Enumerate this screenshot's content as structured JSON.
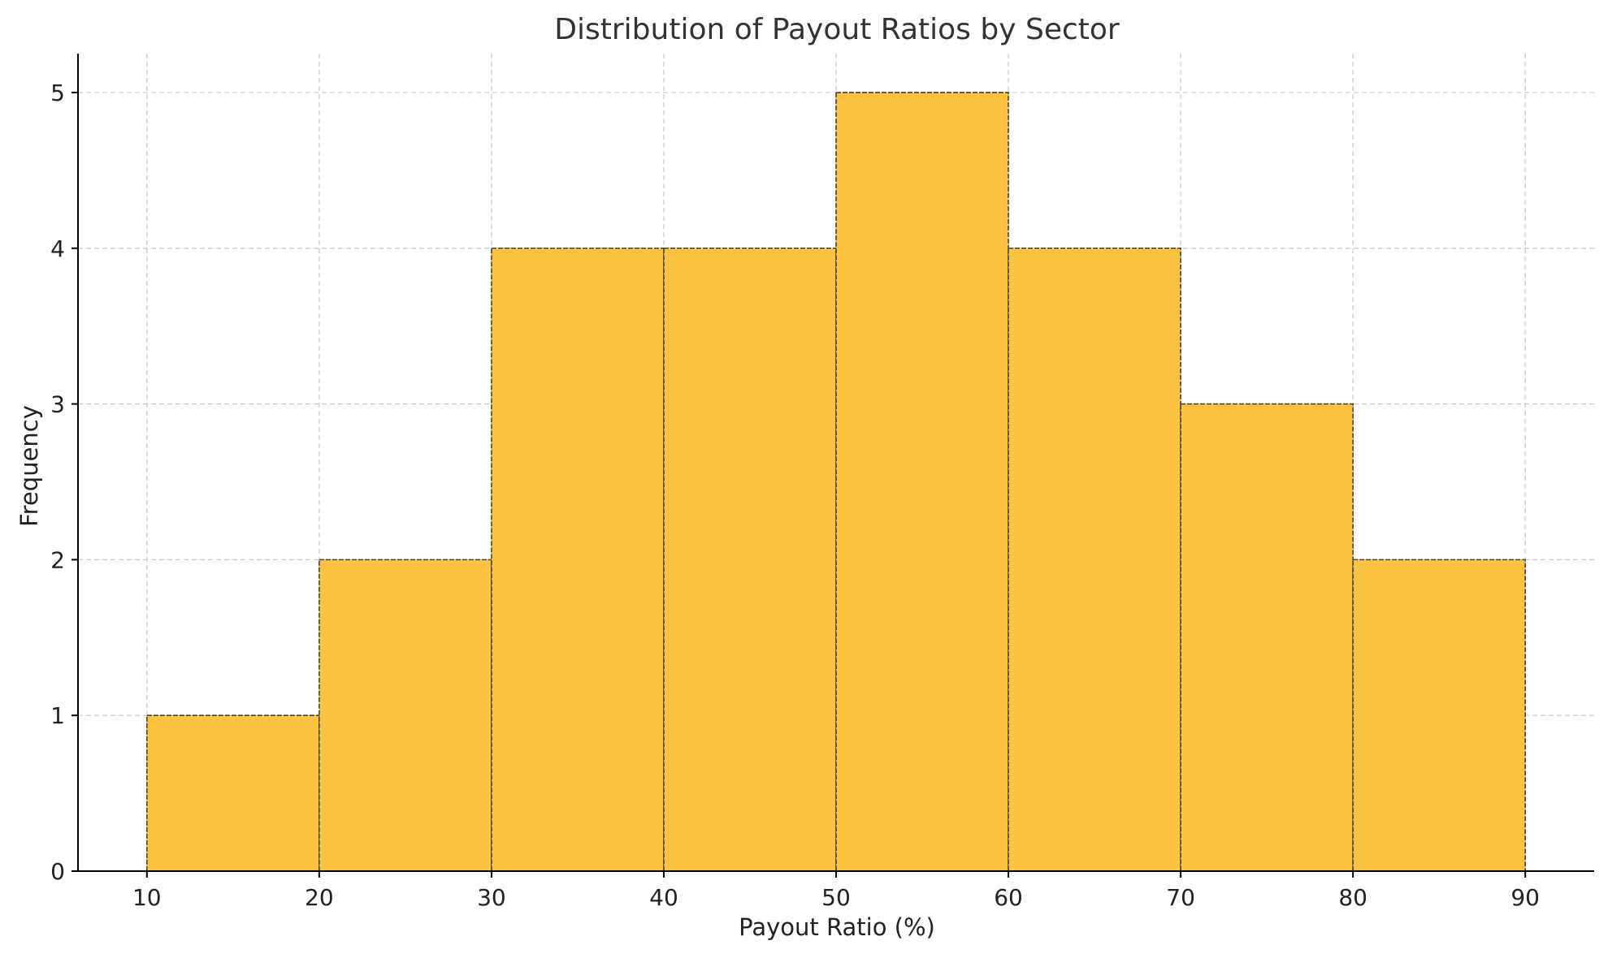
{
  "chart_data": {
    "type": "bar",
    "title": "Distribution of Payout Ratios by Sector",
    "xlabel": "Payout Ratio (%)",
    "ylabel": "Frequency",
    "bins": [
      {
        "start": 10,
        "end": 20,
        "count": 1
      },
      {
        "start": 20,
        "end": 30,
        "count": 2
      },
      {
        "start": 30,
        "end": 40,
        "count": 4
      },
      {
        "start": 40,
        "end": 50,
        "count": 4
      },
      {
        "start": 50,
        "end": 60,
        "count": 5
      },
      {
        "start": 60,
        "end": 70,
        "count": 4
      },
      {
        "start": 70,
        "end": 80,
        "count": 3
      },
      {
        "start": 80,
        "end": 90,
        "count": 2
      }
    ],
    "xlim": [
      6,
      94
    ],
    "ylim": [
      0,
      5.25
    ],
    "xticks": [
      10,
      20,
      30,
      40,
      50,
      60,
      70,
      80,
      90
    ],
    "yticks": [
      0,
      1,
      2,
      3,
      4,
      5
    ],
    "grid": true,
    "bar_color": "#fdc241",
    "edge_color": "#444444"
  }
}
